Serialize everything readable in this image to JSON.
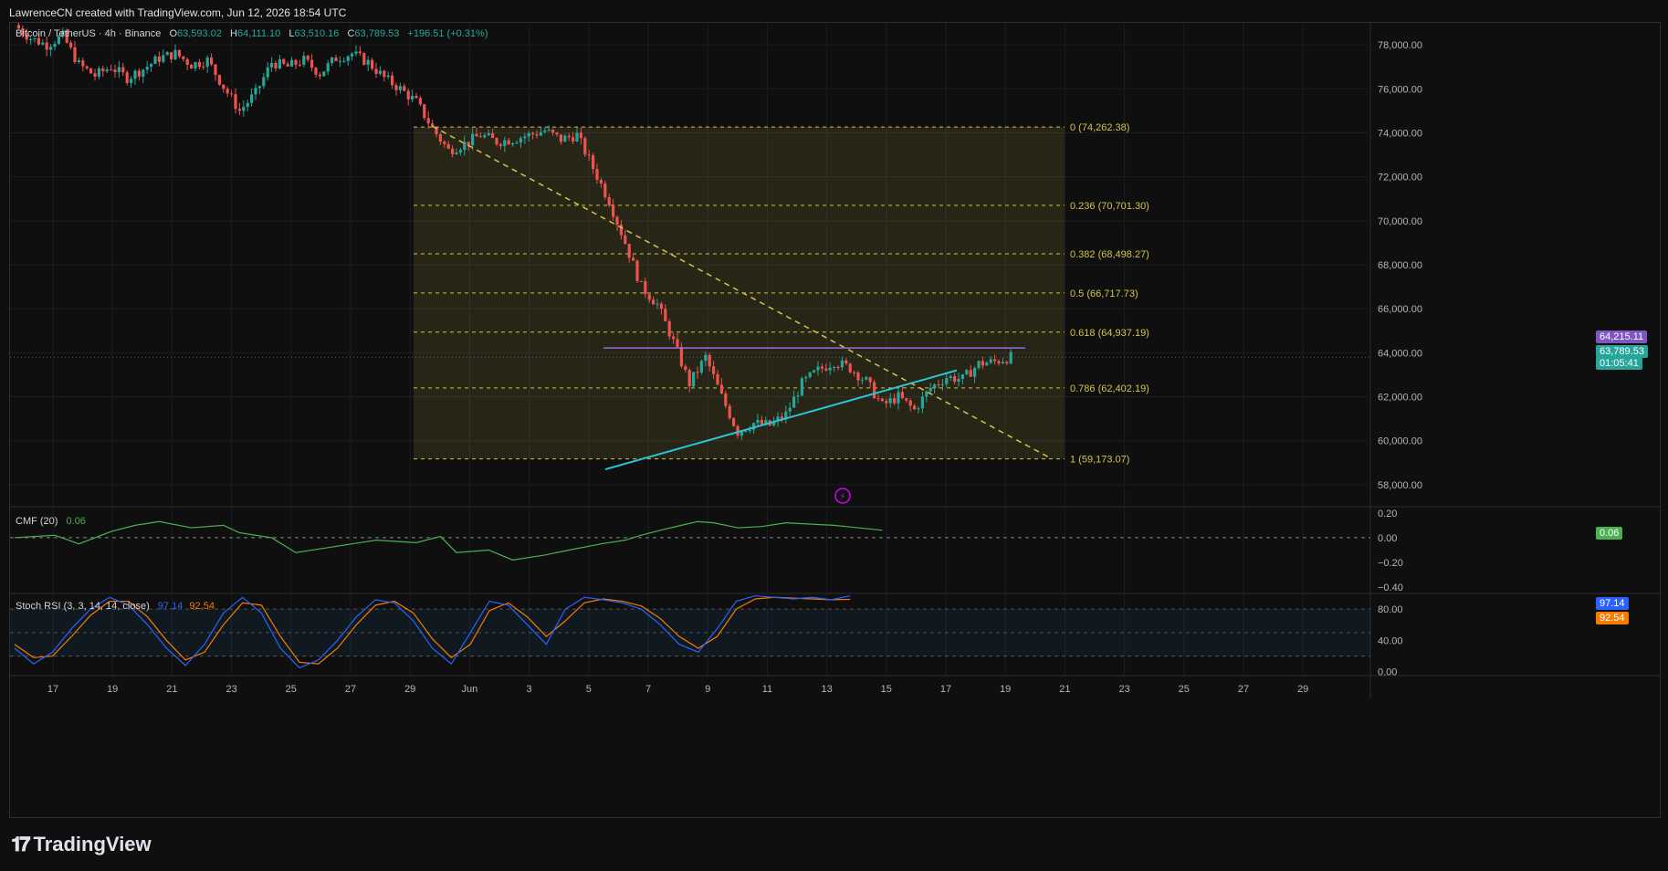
{
  "credit": "LawrenceCN created with TradingView.com, Jun 12, 2026 18:54 UTC",
  "symbol_line": {
    "symbol": "Bitcoin / TetherUS · 4h · Binance",
    "open_label": "O",
    "open": "63,593.02",
    "high_label": "H",
    "high": "64,111.10",
    "low_label": "L",
    "low": "63,510.16",
    "close_label": "C",
    "close": "63,789.53",
    "change": "+196.51 (+0.31%)"
  },
  "fib_levels": [
    {
      "label": "0 (74,262.38)",
      "price": 74262.38
    },
    {
      "label": "0.236 (70,701.30)",
      "price": 70701.3
    },
    {
      "label": "0.382 (68,498.27)",
      "price": 68498.27
    },
    {
      "label": "0.5 (66,717.73)",
      "price": 66717.73
    },
    {
      "label": "0.618 (64,937.19)",
      "price": 64937.19
    },
    {
      "label": "0.786 (62,402.19)",
      "price": 62402.19
    },
    {
      "label": "1 (59,173.07)",
      "price": 59173.07
    }
  ],
  "price_badges": {
    "resistance": "64,215.11",
    "last": "63,789.53",
    "countdown": "01:05:41"
  },
  "cmf": {
    "label": "CMF (20)",
    "value": "0.06",
    "axis": [
      "0.20",
      "0.00",
      "−0.20",
      "−0.40"
    ],
    "badge": "0.06"
  },
  "stoch": {
    "label": "Stoch RSI (3, 3, 14, 14, close)",
    "k": "97.14",
    "d": "92.54",
    "axis": [
      "80.00",
      "40.00",
      "0.00"
    ]
  },
  "x_ticks": [
    "17",
    "19",
    "21",
    "23",
    "25",
    "27",
    "29",
    "Jun",
    "3",
    "5",
    "7",
    "9",
    "11",
    "13",
    "15",
    "17",
    "19",
    "21",
    "23",
    "25",
    "27",
    "29"
  ],
  "footer": {
    "brand": "TradingView"
  },
  "colors": {
    "up": "#26a69a",
    "down": "#ef5350",
    "fib": "#d4c44a",
    "trend_up": "#29c6d8",
    "resistance": "#9c6ade",
    "cmf": "#4caf50",
    "k": "#2962ff",
    "d": "#f57c00"
  },
  "chart_data": {
    "type": "candlestick",
    "title": "Bitcoin / TetherUS · 4h · Binance",
    "ylim": [
      57000,
      79000
    ],
    "y_ticks": [
      78000,
      76000,
      74000,
      72000,
      70000,
      68000,
      66000,
      64000,
      62000,
      60000,
      58000
    ],
    "y_tick_labels": [
      "78,000.00",
      "76,000.00",
      "74,000.00",
      "72,000.00",
      "70,000.00",
      "68,000.00",
      "66,000.00",
      "64,000.00",
      "62,000.00",
      "60,000.00",
      "58,000.00"
    ],
    "price_path": [
      [
        0,
        78900
      ],
      [
        4,
        78300
      ],
      [
        8,
        78000
      ],
      [
        12,
        78400
      ],
      [
        16,
        77100
      ],
      [
        20,
        76600
      ],
      [
        24,
        77000
      ],
      [
        28,
        76500
      ],
      [
        32,
        76900
      ],
      [
        36,
        77400
      ],
      [
        40,
        77600
      ],
      [
        44,
        77100
      ],
      [
        48,
        77300
      ],
      [
        52,
        76100
      ],
      [
        56,
        75000
      ],
      [
        60,
        75800
      ],
      [
        64,
        77200
      ],
      [
        68,
        77000
      ],
      [
        72,
        77300
      ],
      [
        76,
        76700
      ],
      [
        80,
        77400
      ],
      [
        84,
        77600
      ],
      [
        88,
        77200
      ],
      [
        92,
        76500
      ],
      [
        96,
        76000
      ],
      [
        100,
        75400
      ],
      [
        104,
        74200
      ],
      [
        108,
        73200
      ],
      [
        112,
        73500
      ],
      [
        116,
        73900
      ],
      [
        120,
        73600
      ],
      [
        124,
        73700
      ],
      [
        128,
        73900
      ],
      [
        132,
        74100
      ],
      [
        136,
        73700
      ],
      [
        140,
        73900
      ],
      [
        144,
        72400
      ],
      [
        148,
        70900
      ],
      [
        152,
        69000
      ],
      [
        156,
        67000
      ],
      [
        160,
        66200
      ],
      [
        164,
        64500
      ],
      [
        168,
        62600
      ],
      [
        172,
        63800
      ],
      [
        176,
        62000
      ],
      [
        180,
        60400
      ],
      [
        184,
        60800
      ],
      [
        188,
        60700
      ],
      [
        192,
        61200
      ],
      [
        196,
        62600
      ],
      [
        200,
        63200
      ],
      [
        204,
        63600
      ],
      [
        208,
        63300
      ],
      [
        212,
        62700
      ],
      [
        216,
        61600
      ],
      [
        220,
        62000
      ],
      [
        224,
        61400
      ],
      [
        228,
        62400
      ],
      [
        232,
        62900
      ],
      [
        236,
        62800
      ],
      [
        240,
        63500
      ],
      [
        244,
        63600
      ],
      [
        248,
        63800
      ]
    ],
    "ranges": {
      "cmf": [
        -0.45,
        0.25
      ],
      "stoch": [
        -5,
        100
      ]
    },
    "cmf_path": [
      [
        0,
        0.0
      ],
      [
        10,
        0.02
      ],
      [
        16,
        -0.05
      ],
      [
        24,
        0.05
      ],
      [
        30,
        0.1
      ],
      [
        36,
        0.13
      ],
      [
        44,
        0.08
      ],
      [
        52,
        0.1
      ],
      [
        56,
        0.04
      ],
      [
        64,
        0.0
      ],
      [
        70,
        -0.12
      ],
      [
        78,
        -0.08
      ],
      [
        90,
        -0.02
      ],
      [
        100,
        -0.04
      ],
      [
        106,
        0.01
      ],
      [
        110,
        -0.12
      ],
      [
        118,
        -0.1
      ],
      [
        124,
        -0.18
      ],
      [
        132,
        -0.14
      ],
      [
        138,
        -0.1
      ],
      [
        146,
        -0.05
      ],
      [
        152,
        -0.02
      ],
      [
        156,
        0.02
      ],
      [
        162,
        0.07
      ],
      [
        166,
        0.1
      ],
      [
        170,
        0.13
      ],
      [
        174,
        0.12
      ],
      [
        180,
        0.08
      ],
      [
        186,
        0.09
      ],
      [
        192,
        0.12
      ],
      [
        198,
        0.11
      ],
      [
        204,
        0.1
      ],
      [
        210,
        0.08
      ],
      [
        216,
        0.06
      ]
    ],
    "k_path": [
      [
        0,
        30
      ],
      [
        4,
        10
      ],
      [
        8,
        25
      ],
      [
        12,
        55
      ],
      [
        16,
        80
      ],
      [
        20,
        95
      ],
      [
        24,
        85
      ],
      [
        28,
        60
      ],
      [
        32,
        30
      ],
      [
        36,
        8
      ],
      [
        40,
        35
      ],
      [
        44,
        75
      ],
      [
        48,
        95
      ],
      [
        52,
        75
      ],
      [
        56,
        30
      ],
      [
        60,
        5
      ],
      [
        64,
        15
      ],
      [
        68,
        40
      ],
      [
        72,
        70
      ],
      [
        76,
        92
      ],
      [
        80,
        88
      ],
      [
        84,
        65
      ],
      [
        88,
        30
      ],
      [
        92,
        10
      ],
      [
        96,
        50
      ],
      [
        100,
        90
      ],
      [
        104,
        85
      ],
      [
        108,
        60
      ],
      [
        112,
        35
      ],
      [
        116,
        80
      ],
      [
        120,
        95
      ],
      [
        124,
        92
      ],
      [
        128,
        88
      ],
      [
        132,
        80
      ],
      [
        136,
        60
      ],
      [
        140,
        35
      ],
      [
        144,
        25
      ],
      [
        148,
        55
      ],
      [
        152,
        90
      ],
      [
        156,
        97
      ],
      [
        160,
        95
      ],
      [
        164,
        93
      ],
      [
        168,
        95
      ],
      [
        172,
        92
      ],
      [
        176,
        97
      ]
    ],
    "d_path": [
      [
        0,
        35
      ],
      [
        4,
        18
      ],
      [
        8,
        20
      ],
      [
        12,
        45
      ],
      [
        16,
        72
      ],
      [
        20,
        90
      ],
      [
        24,
        90
      ],
      [
        28,
        70
      ],
      [
        32,
        40
      ],
      [
        36,
        15
      ],
      [
        40,
        25
      ],
      [
        44,
        60
      ],
      [
        48,
        88
      ],
      [
        52,
        85
      ],
      [
        56,
        45
      ],
      [
        60,
        12
      ],
      [
        64,
        10
      ],
      [
        68,
        30
      ],
      [
        72,
        60
      ],
      [
        76,
        85
      ],
      [
        80,
        90
      ],
      [
        84,
        75
      ],
      [
        88,
        42
      ],
      [
        92,
        18
      ],
      [
        96,
        35
      ],
      [
        100,
        78
      ],
      [
        104,
        88
      ],
      [
        108,
        70
      ],
      [
        112,
        45
      ],
      [
        116,
        65
      ],
      [
        120,
        88
      ],
      [
        124,
        93
      ],
      [
        128,
        90
      ],
      [
        132,
        84
      ],
      [
        136,
        68
      ],
      [
        140,
        45
      ],
      [
        144,
        30
      ],
      [
        148,
        45
      ],
      [
        152,
        80
      ],
      [
        156,
        93
      ],
      [
        160,
        95
      ],
      [
        164,
        94
      ],
      [
        168,
        93
      ],
      [
        172,
        92
      ],
      [
        176,
        92.5
      ]
    ]
  }
}
